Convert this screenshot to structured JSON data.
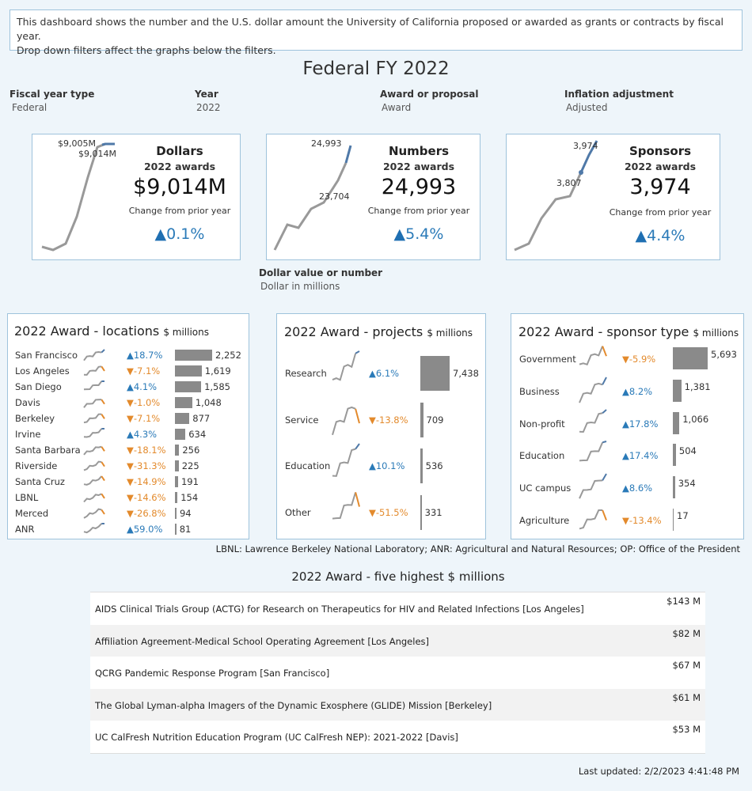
{
  "intro": {
    "line1": "This dashboard shows the number and the U.S. dollar amount the University of California proposed or awarded as grants or contracts by fiscal year.",
    "line2": "Drop down filters affect the graphs below the filters."
  },
  "page_title": "Federal FY 2022",
  "filters": [
    {
      "label": "Fiscal year type",
      "value": "Federal"
    },
    {
      "label": "Year",
      "value": "2022"
    },
    {
      "label": "Award or proposal",
      "value": "Award"
    },
    {
      "label": "Inflation adjustment",
      "value": "Adjusted"
    }
  ],
  "kpis": [
    {
      "title": "Dollars",
      "subtitle": "2022 awards",
      "value": "$9,014M",
      "change_label": "Change from prior year",
      "change": "0.1%",
      "spark_labels": [
        "$9,005M",
        "$9,014M"
      ]
    },
    {
      "title": "Numbers",
      "subtitle": "2022 awards",
      "value": "24,993",
      "change_label": "Change from prior year",
      "change": "5.4%",
      "spark_labels": [
        "24,993",
        "23,704"
      ]
    },
    {
      "title": "Sponsors",
      "subtitle": "2022 awards",
      "value": "3,974",
      "change_label": "Change from prior year",
      "change": "4.4%",
      "spark_labels": [
        "3,974",
        "3,807"
      ]
    }
  ],
  "value_filter": {
    "label": "Dollar value or number",
    "value": "Dollar in millions"
  },
  "locations": {
    "title": "2022 Award - locations",
    "unit": "$ millions",
    "rows": [
      {
        "name": "San Francisco",
        "change": "18.7%",
        "dir": "up",
        "value": 2252,
        "label": "2,252"
      },
      {
        "name": "Los Angeles",
        "change": "-7.1%",
        "dir": "down",
        "value": 1619,
        "label": "1,619"
      },
      {
        "name": "San Diego",
        "change": "4.1%",
        "dir": "up",
        "value": 1585,
        "label": "1,585"
      },
      {
        "name": "Davis",
        "change": "-1.0%",
        "dir": "down",
        "value": 1048,
        "label": "1,048"
      },
      {
        "name": "Berkeley",
        "change": "-7.1%",
        "dir": "down",
        "value": 877,
        "label": "877"
      },
      {
        "name": "Irvine",
        "change": "4.3%",
        "dir": "up",
        "value": 634,
        "label": "634"
      },
      {
        "name": "Santa Barbara",
        "change": "-18.1%",
        "dir": "down",
        "value": 256,
        "label": "256"
      },
      {
        "name": "Riverside",
        "change": "-31.3%",
        "dir": "down",
        "value": 225,
        "label": "225"
      },
      {
        "name": "Santa Cruz",
        "change": "-14.9%",
        "dir": "down",
        "value": 191,
        "label": "191"
      },
      {
        "name": "LBNL",
        "change": "-14.6%",
        "dir": "down",
        "value": 154,
        "label": "154"
      },
      {
        "name": "Merced",
        "change": "-26.8%",
        "dir": "down",
        "value": 94,
        "label": "94"
      },
      {
        "name": "ANR",
        "change": "59.0%",
        "dir": "up",
        "value": 81,
        "label": "81"
      }
    ]
  },
  "projects": {
    "title": "2022 Award - projects",
    "unit": "$ millions",
    "rows": [
      {
        "name": "Research",
        "change": "6.1%",
        "dir": "up",
        "value": 7438,
        "label": "7,438"
      },
      {
        "name": "Service",
        "change": "-13.8%",
        "dir": "down",
        "value": 709,
        "label": "709"
      },
      {
        "name": "Education",
        "change": "10.1%",
        "dir": "up",
        "value": 536,
        "label": "536"
      },
      {
        "name": "Other",
        "change": "-51.5%",
        "dir": "down",
        "value": 331,
        "label": "331"
      }
    ]
  },
  "sponsors": {
    "title": "2022 Award - sponsor type",
    "unit": "$ millions",
    "rows": [
      {
        "name": "Government",
        "change": "-5.9%",
        "dir": "down",
        "value": 5693,
        "label": "5,693"
      },
      {
        "name": "Business",
        "change": "8.2%",
        "dir": "up",
        "value": 1381,
        "label": "1,381"
      },
      {
        "name": "Non-profit",
        "change": "17.8%",
        "dir": "up",
        "value": 1066,
        "label": "1,066"
      },
      {
        "name": "Education",
        "change": "17.4%",
        "dir": "up",
        "value": 504,
        "label": "504"
      },
      {
        "name": "UC campus",
        "change": "8.6%",
        "dir": "up",
        "value": 354,
        "label": "354"
      },
      {
        "name": "Agriculture",
        "change": "-13.4%",
        "dir": "down",
        "value": 17,
        "label": "17"
      }
    ]
  },
  "footnote": "LBNL: Lawrence Berkeley National Laboratory; ANR: Agricultural and Natural Resources; OP: Office of the President",
  "top_five": {
    "title": "2022 Award - five highest $ millions",
    "rows": [
      {
        "name": "AIDS Clinical Trials Group (ACTG) for Research on Therapeutics for HIV and Related Infections  [Los Angeles]",
        "amount": "$143 M"
      },
      {
        "name": "Affiliation Agreement-Medical School Operating Agreement  [Los Angeles]",
        "amount": "$82 M"
      },
      {
        "name": "QCRG Pandemic Response Program  [San Francisco]",
        "amount": "$67 M"
      },
      {
        "name": "The Global Lyman-alpha Imagers of the Dynamic Exosphere (GLIDE) Mission  [Berkeley]",
        "amount": "$61 M"
      },
      {
        "name": "UC CalFresh Nutrition Education Program (UC CalFresh NEP): 2021-2022  [Davis]",
        "amount": "$53 M"
      }
    ]
  },
  "last_updated": "Last updated: 2/2/2023 4:41:48 PM",
  "colors": {
    "up": "#2a7ab8",
    "down": "#e38a2c",
    "line": "#999999",
    "line_recent": "#4f79a8",
    "bar": "#8a8a8a",
    "border": "#9ec3dc"
  }
}
